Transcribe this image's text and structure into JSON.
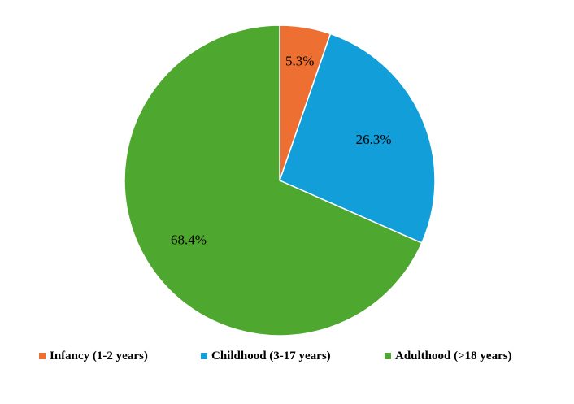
{
  "chart_data": {
    "type": "pie",
    "title": "",
    "categories": [
      "Infancy (1-2 years)",
      "Childhood (3-17 years)",
      "Adulthood (>18 years)"
    ],
    "values": [
      5.3,
      26.3,
      68.4
    ],
    "data_labels": [
      "5.3%",
      "26.3%",
      "68.4%"
    ],
    "colors": [
      "#ed7032",
      "#129ed8",
      "#4ea72e"
    ],
    "start": "12 o'clock",
    "direction": "clockwise",
    "legend": "bottom"
  }
}
